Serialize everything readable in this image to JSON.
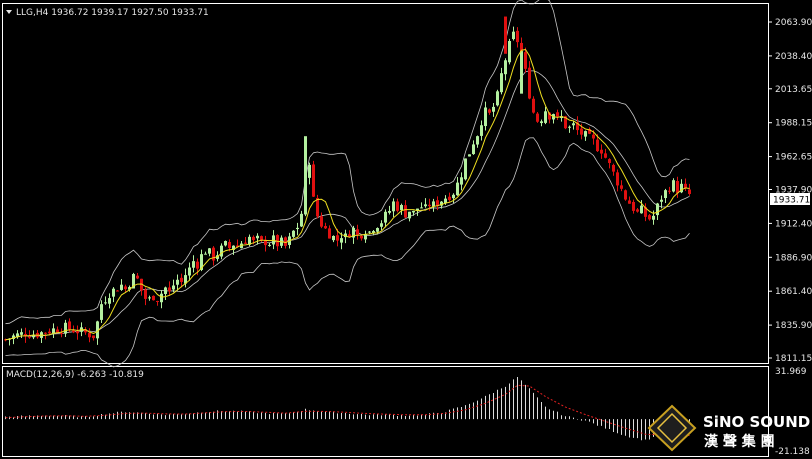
{
  "header": {
    "symbol_line": "LLG,H4  1936.72 1939.17 1927.50 1933.71",
    "menu_arrow": "triangle-down-icon"
  },
  "current_price_label": "1933.71",
  "macd_label": "MACD(12,26,9) -6.263 -10.819",
  "watermark": {
    "brand": "SiNO SOUND",
    "chinese": "漢 聲 集 團"
  },
  "colors": {
    "background": "#000000",
    "bull_candle": "#b4f0a0",
    "bear_candle": "#e01010",
    "ma_line": "#f0e020",
    "bands": "#c8c8c8",
    "macd_hist": "#dcdcdc",
    "macd_signal": "#e02020",
    "grid_frame": "#ffffff"
  },
  "chart_data": [
    {
      "type": "candlestick",
      "title": "LLG,H4",
      "ohlc_last": {
        "open": 1936.72,
        "high": 1939.17,
        "low": 1927.5,
        "close": 1933.71
      },
      "y_ticks": [
        "2063.90",
        "2038.40",
        "2013.65",
        "1988.15",
        "1962.65",
        "1937.90",
        "1912.40",
        "1886.90",
        "1861.40",
        "1835.90",
        "1811.15"
      ],
      "ylim": [
        1811.15,
        2070.0
      ],
      "current_price": 1933.71,
      "overlays": [
        "moving average (yellow)",
        "bollinger bands (grey)"
      ],
      "close_path": [
        [
          0,
          1825
        ],
        [
          10,
          1828
        ],
        [
          20,
          1830
        ],
        [
          30,
          1829
        ],
        [
          40,
          1831
        ],
        [
          50,
          1833
        ],
        [
          60,
          1834
        ],
        [
          70,
          1832
        ],
        [
          80,
          1830
        ],
        [
          88,
          1828
        ],
        [
          92,
          1838
        ],
        [
          96,
          1852
        ],
        [
          100,
          1856
        ],
        [
          104,
          1860
        ],
        [
          108,
          1862
        ],
        [
          112,
          1864
        ],
        [
          116,
          1866
        ],
        [
          120,
          1863
        ],
        [
          124,
          1868
        ],
        [
          128,
          1872
        ],
        [
          132,
          1870
        ],
        [
          136,
          1862
        ],
        [
          140,
          1856
        ],
        [
          144,
          1855
        ],
        [
          148,
          1858
        ],
        [
          152,
          1856
        ],
        [
          156,
          1860
        ],
        [
          160,
          1864
        ],
        [
          164,
          1860
        ],
        [
          168,
          1866
        ],
        [
          172,
          1870
        ],
        [
          176,
          1868
        ],
        [
          180,
          1874
        ],
        [
          184,
          1878
        ],
        [
          188,
          1884
        ],
        [
          192,
          1882
        ],
        [
          196,
          1888
        ],
        [
          200,
          1892
        ],
        [
          204,
          1890
        ],
        [
          208,
          1887
        ],
        [
          212,
          1890
        ],
        [
          216,
          1893
        ],
        [
          220,
          1896
        ],
        [
          224,
          1894
        ],
        [
          228,
          1897
        ],
        [
          232,
          1895
        ],
        [
          236,
          1898
        ],
        [
          240,
          1900
        ],
        [
          244,
          1902
        ],
        [
          248,
          1898
        ],
        [
          252,
          1900
        ],
        [
          256,
          1897
        ],
        [
          260,
          1899
        ],
        [
          264,
          1898
        ],
        [
          268,
          1900
        ],
        [
          272,
          1897
        ],
        [
          276,
          1898
        ],
        [
          280,
          1895
        ],
        [
          284,
          1900
        ],
        [
          288,
          1906
        ],
        [
          292,
          1910
        ],
        [
          296,
          1920
        ],
        [
          300,
          1944
        ],
        [
          304,
          1960
        ],
        [
          308,
          1930
        ],
        [
          312,
          1918
        ],
        [
          316,
          1912
        ],
        [
          320,
          1908
        ],
        [
          324,
          1905
        ],
        [
          328,
          1902
        ],
        [
          332,
          1900
        ],
        [
          336,
          1904
        ],
        [
          340,
          1902
        ],
        [
          344,
          1906
        ],
        [
          348,
          1908
        ],
        [
          352,
          1903
        ],
        [
          356,
          1905
        ],
        [
          360,
          1908
        ],
        [
          364,
          1906
        ],
        [
          368,
          1910
        ],
        [
          372,
          1912
        ],
        [
          376,
          1914
        ],
        [
          380,
          1918
        ],
        [
          384,
          1922
        ],
        [
          388,
          1928
        ],
        [
          392,
          1925
        ],
        [
          396,
          1924
        ],
        [
          400,
          1920
        ],
        [
          404,
          1922
        ],
        [
          408,
          1920
        ],
        [
          412,
          1924
        ],
        [
          416,
          1925
        ],
        [
          420,
          1923
        ],
        [
          424,
          1927
        ],
        [
          428,
          1926
        ],
        [
          432,
          1928
        ],
        [
          436,
          1930
        ],
        [
          440,
          1932
        ],
        [
          444,
          1934
        ],
        [
          448,
          1936
        ],
        [
          452,
          1942
        ],
        [
          456,
          1950
        ],
        [
          460,
          1960
        ],
        [
          464,
          1966
        ],
        [
          468,
          1974
        ],
        [
          472,
          1980
        ],
        [
          476,
          1990
        ],
        [
          480,
          1996
        ],
        [
          484,
          1994
        ],
        [
          488,
          2000
        ],
        [
          492,
          2008
        ],
        [
          496,
          2024
        ],
        [
          500,
          2036
        ],
        [
          504,
          2046
        ],
        [
          508,
          2054
        ],
        [
          512,
          2050
        ],
        [
          516,
          2040
        ],
        [
          520,
          2026
        ],
        [
          524,
          2010
        ],
        [
          528,
          1996
        ],
        [
          532,
          1990
        ],
        [
          536,
          1992
        ],
        [
          540,
          1998
        ],
        [
          544,
          1994
        ],
        [
          548,
          1996
        ],
        [
          552,
          1990
        ],
        [
          556,
          1992
        ],
        [
          560,
          1986
        ],
        [
          564,
          1984
        ],
        [
          568,
          1986
        ],
        [
          572,
          1982
        ],
        [
          576,
          1980
        ],
        [
          580,
          1978
        ],
        [
          584,
          1976
        ],
        [
          588,
          1974
        ],
        [
          592,
          1970
        ],
        [
          596,
          1968
        ],
        [
          600,
          1962
        ],
        [
          604,
          1956
        ],
        [
          608,
          1950
        ],
        [
          612,
          1944
        ],
        [
          616,
          1938
        ],
        [
          620,
          1932
        ],
        [
          624,
          1928
        ],
        [
          628,
          1924
        ],
        [
          632,
          1920
        ],
        [
          636,
          1922
        ],
        [
          640,
          1918
        ],
        [
          644,
          1916
        ],
        [
          648,
          1918
        ],
        [
          652,
          1925
        ],
        [
          656,
          1932
        ],
        [
          660,
          1936
        ],
        [
          664,
          1940
        ],
        [
          668,
          1942
        ],
        [
          672,
          1938
        ],
        [
          676,
          1940
        ],
        [
          680,
          1936
        ],
        [
          684,
          1934
        ]
      ]
    },
    {
      "type": "bar",
      "title": "MACD(12,26,9)",
      "values_label": {
        "macd": -6.263,
        "signal": -10.819
      },
      "y_ticks": [
        "31.969",
        "-21.138"
      ],
      "ylim": [
        -21.138,
        31.969
      ],
      "hist_path": [
        [
          0,
          1.5
        ],
        [
          20,
          2.0
        ],
        [
          40,
          2.5
        ],
        [
          60,
          2.2
        ],
        [
          80,
          1.5
        ],
        [
          100,
          3.5
        ],
        [
          120,
          5.0
        ],
        [
          140,
          4.0
        ],
        [
          160,
          3.0
        ],
        [
          180,
          3.5
        ],
        [
          200,
          5.0
        ],
        [
          220,
          5.5
        ],
        [
          240,
          5.0
        ],
        [
          260,
          4.0
        ],
        [
          280,
          3.5
        ],
        [
          300,
          6.5
        ],
        [
          320,
          5.0
        ],
        [
          340,
          4.0
        ],
        [
          360,
          3.0
        ],
        [
          380,
          3.0
        ],
        [
          400,
          2.5
        ],
        [
          420,
          3.0
        ],
        [
          440,
          5.0
        ],
        [
          460,
          9.0
        ],
        [
          480,
          15.0
        ],
        [
          500,
          22.0
        ],
        [
          512,
          28.0
        ],
        [
          524,
          20.0
        ],
        [
          540,
          8.0
        ],
        [
          560,
          2.0
        ],
        [
          580,
          -1.0
        ],
        [
          600,
          -6.0
        ],
        [
          620,
          -11.0
        ],
        [
          640,
          -14.0
        ],
        [
          660,
          -9.0
        ],
        [
          684,
          -6.263
        ]
      ],
      "signal_path": [
        [
          0,
          1.0
        ],
        [
          20,
          1.6
        ],
        [
          40,
          2.1
        ],
        [
          60,
          2.2
        ],
        [
          80,
          1.9
        ],
        [
          100,
          2.6
        ],
        [
          120,
          3.8
        ],
        [
          140,
          4.0
        ],
        [
          160,
          3.5
        ],
        [
          180,
          3.4
        ],
        [
          200,
          4.2
        ],
        [
          220,
          5.0
        ],
        [
          240,
          5.1
        ],
        [
          260,
          4.6
        ],
        [
          280,
          4.0
        ],
        [
          300,
          5.2
        ],
        [
          320,
          5.1
        ],
        [
          340,
          4.6
        ],
        [
          360,
          3.8
        ],
        [
          380,
          3.3
        ],
        [
          400,
          2.9
        ],
        [
          420,
          2.9
        ],
        [
          440,
          3.9
        ],
        [
          460,
          6.2
        ],
        [
          480,
          10.5
        ],
        [
          500,
          16.5
        ],
        [
          512,
          22.5
        ],
        [
          524,
          22.0
        ],
        [
          540,
          15.0
        ],
        [
          560,
          8.0
        ],
        [
          580,
          3.0
        ],
        [
          600,
          -1.5
        ],
        [
          620,
          -6.0
        ],
        [
          640,
          -10.0
        ],
        [
          660,
          -10.5
        ],
        [
          684,
          -10.819
        ]
      ]
    }
  ]
}
